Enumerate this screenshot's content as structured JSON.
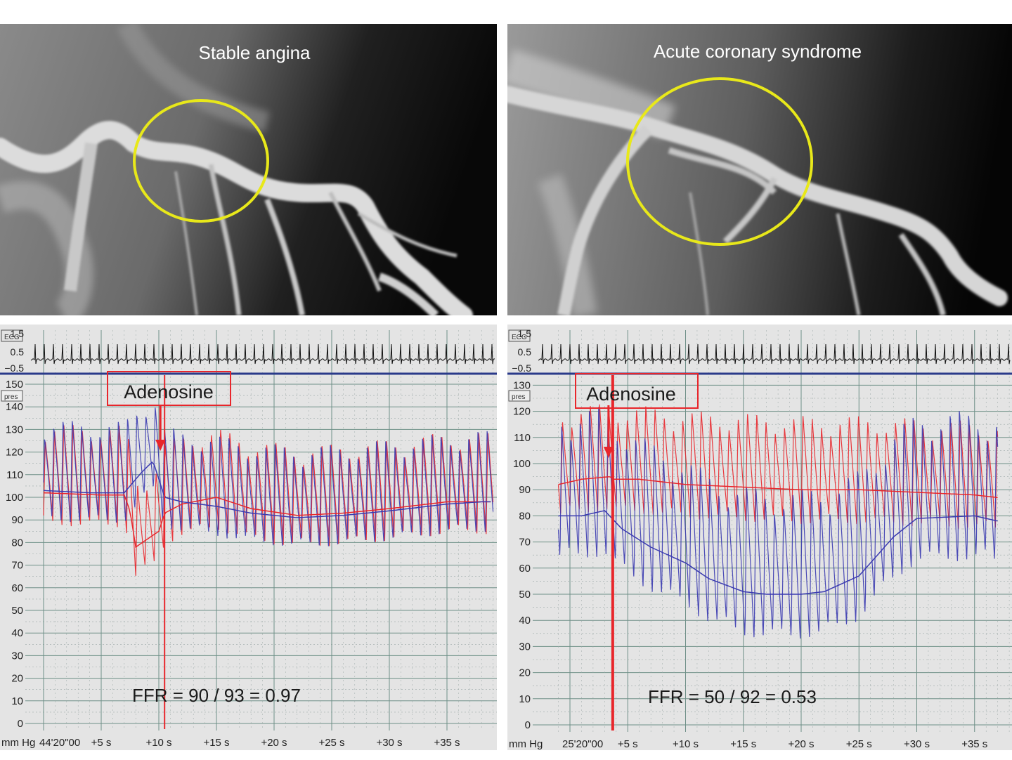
{
  "panels": [
    {
      "id": "stable",
      "angiogram": {
        "title": "Stable angina",
        "highlight_color": "#e8e81a"
      },
      "trace": {
        "ecg_label": "ECG",
        "ecg_ticks": [
          "1.5",
          "0.5",
          "−0.5"
        ],
        "pres_label": "pres",
        "unit_label": "mm Hg",
        "time_start": "44'20\"00",
        "time_labels": [
          "+5 s",
          "+10 s",
          "+15 s",
          "+20 s",
          "+25 s",
          "+30 s",
          "+35 s"
        ],
        "annotation": "Adenosine",
        "ffr_text": "FFR = 90 / 93 = 0.97"
      }
    },
    {
      "id": "acs",
      "angiogram": {
        "title": "Acute coronary syndrome",
        "highlight_color": "#e8e81a"
      },
      "trace": {
        "ecg_label": "ECG",
        "ecg_ticks": [
          "1.5",
          "0.5",
          "−0.5"
        ],
        "pres_label": "pres",
        "unit_label": "mm Hg",
        "time_start": "25'20\"00",
        "time_labels": [
          "+5 s",
          "+10 s",
          "+15 s",
          "+20 s",
          "+25 s",
          "+30 s",
          "+35 s"
        ],
        "annotation": "Adenosine",
        "ffr_text": "FFR = 50 / 92 = 0.53"
      }
    }
  ],
  "colors": {
    "aortic_pressure": "#e8262b",
    "distal_pressure": "#3a3ab0",
    "ecg": "#111111",
    "grid_major": "#6e8f87",
    "grid_minor": "#9aa7a6",
    "plot_bg": "#e4e4e4",
    "annotation": "#e8262b"
  },
  "chart_data": [
    {
      "type": "line",
      "title": "Stable angina",
      "xlabel": "",
      "ylabel": "mm Hg",
      "x_tick_labels": [
        "44'20\"00",
        "+5 s",
        "+10 s",
        "+15 s",
        "+20 s",
        "+25 s",
        "+30 s",
        "+35 s"
      ],
      "y_ticks": [
        0,
        10,
        20,
        30,
        40,
        50,
        60,
        70,
        80,
        90,
        100,
        110,
        120,
        130,
        140,
        150
      ],
      "ylim": [
        0,
        155
      ],
      "xlim": [
        0,
        39
      ],
      "adenosine_time_s": 10.5,
      "series": [
        {
          "key": "pa_mean",
          "x": [
            0,
            5,
            7,
            7.5,
            8,
            10,
            10.5,
            12,
            15,
            18,
            22,
            26,
            30,
            35,
            38
          ],
          "values": [
            102,
            101,
            101,
            94,
            78,
            85,
            93,
            97,
            100,
            95,
            92,
            93,
            95,
            98,
            98
          ]
        },
        {
          "key": "pd_mean",
          "x": [
            0,
            4,
            7,
            8.5,
            9.5,
            10.5,
            12,
            15,
            18,
            22,
            26,
            30,
            35,
            38
          ],
          "values": [
            103,
            102,
            102,
            111,
            116,
            100,
            98,
            96,
            93,
            91,
            92,
            94,
            97,
            98
          ]
        }
      ],
      "ffr": {
        "pd": 90,
        "pa": 93,
        "value": 0.97
      }
    },
    {
      "type": "line",
      "title": "Acute coronary syndrome",
      "xlabel": "",
      "ylabel": "mm Hg",
      "x_tick_labels": [
        "25'20\"00",
        "+5 s",
        "+10 s",
        "+15 s",
        "+20 s",
        "+25 s",
        "+30 s",
        "+35 s"
      ],
      "y_ticks": [
        0,
        10,
        20,
        30,
        40,
        50,
        60,
        70,
        80,
        90,
        100,
        110,
        120,
        130
      ],
      "ylim": [
        0,
        135
      ],
      "xlim": [
        -1,
        37
      ],
      "adenosine_time_s": 3.7,
      "series": [
        {
          "key": "pa_mean",
          "x": [
            -1,
            1,
            3.5,
            3.8,
            6,
            10,
            15,
            20,
            25,
            30,
            35,
            37
          ],
          "values": [
            92,
            94,
            95,
            94,
            94,
            92,
            91,
            90,
            90,
            89,
            88,
            87
          ]
        },
        {
          "key": "pd_mean",
          "x": [
            -1,
            1,
            3,
            4.5,
            7,
            10,
            12,
            15,
            17,
            20,
            22,
            25,
            28,
            30,
            35,
            37
          ],
          "values": [
            80,
            80,
            82,
            75,
            68,
            62,
            56,
            51,
            50,
            50,
            51,
            57,
            72,
            79,
            80,
            78
          ]
        }
      ],
      "ffr": {
        "pd": 50,
        "pa": 92,
        "value": 0.53
      }
    }
  ]
}
